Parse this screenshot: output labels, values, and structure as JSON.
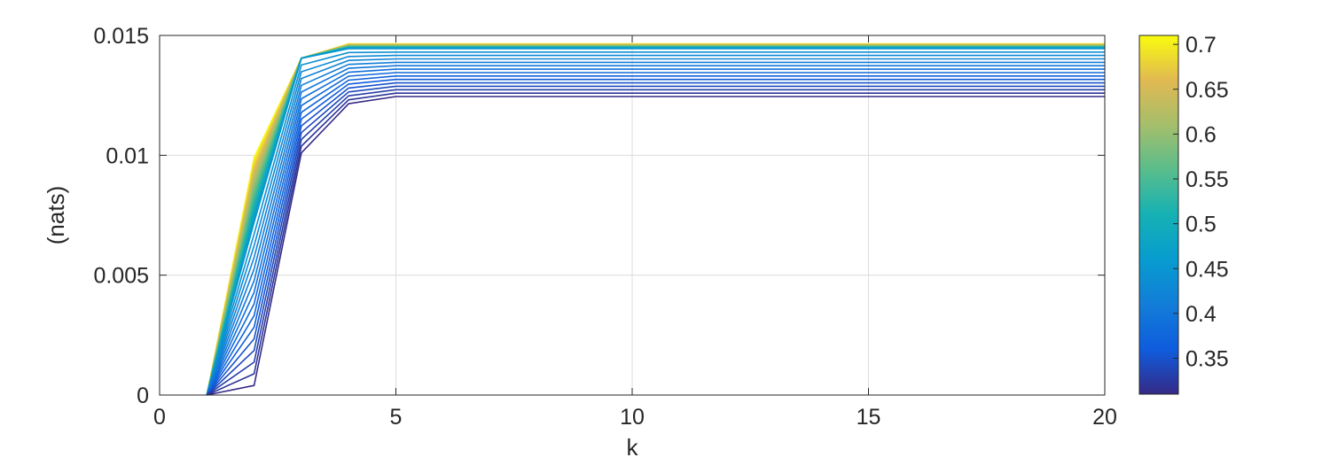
{
  "chart_data": {
    "type": "line",
    "title": "",
    "xlabel": "k",
    "ylabel": "(nats)",
    "xlim": [
      0,
      20
    ],
    "ylim": [
      0,
      0.015
    ],
    "xticks": [
      0,
      5,
      10,
      15,
      20
    ],
    "xtick_labels": [
      "0",
      "5",
      "10",
      "15",
      "20"
    ],
    "yticks": [
      0,
      0.005,
      0.01,
      0.015
    ],
    "ytick_labels": [
      "0",
      "0.005",
      "0.01",
      "0.015"
    ],
    "grid": true,
    "colormap": "parula",
    "colorbar": {
      "range": [
        0.31,
        0.71
      ],
      "ticks": [
        0.35,
        0.4,
        0.45,
        0.5,
        0.55,
        0.6,
        0.65,
        0.7
      ],
      "tick_labels": [
        "0.35",
        "0.4",
        "0.45",
        "0.5",
        "0.55",
        "0.6",
        "0.65",
        "0.7"
      ]
    },
    "x": [
      1,
      2,
      3,
      4,
      5,
      6,
      7,
      8,
      9,
      10,
      11,
      12,
      13,
      14,
      15,
      16,
      17,
      18,
      19,
      20
    ],
    "series_family": {
      "parameter_range": [
        0.31,
        0.71
      ],
      "count": 41,
      "description_of_extremes": [
        {
          "param": 0.71,
          "values": [
            0,
            0.0099,
            0.01405,
            0.01465,
            0.01465,
            0.01465,
            0.01465,
            0.01465,
            0.01465,
            0.01465,
            0.01465,
            0.01465,
            0.01465,
            0.01465,
            0.01465,
            0.01465,
            0.01465,
            0.01465,
            0.01465,
            0.01465
          ]
        },
        {
          "param": 0.45,
          "values": [
            0,
            0.0072,
            0.01405,
            0.01445,
            0.01445,
            0.01445,
            0.01445,
            0.01445,
            0.01445,
            0.01445,
            0.01445,
            0.01445,
            0.01445,
            0.01445,
            0.01445,
            0.01445,
            0.01445,
            0.01445,
            0.01445,
            0.01445
          ]
        },
        {
          "param": 0.31,
          "values": [
            0,
            0.0004,
            0.0101,
            0.01215,
            0.01245,
            0.01245,
            0.01245,
            0.01245,
            0.01245,
            0.01245,
            0.01245,
            0.01245,
            0.01245,
            0.01245,
            0.01245,
            0.01245,
            0.01245,
            0.01245,
            0.01245,
            0.01245
          ]
        }
      ]
    }
  }
}
